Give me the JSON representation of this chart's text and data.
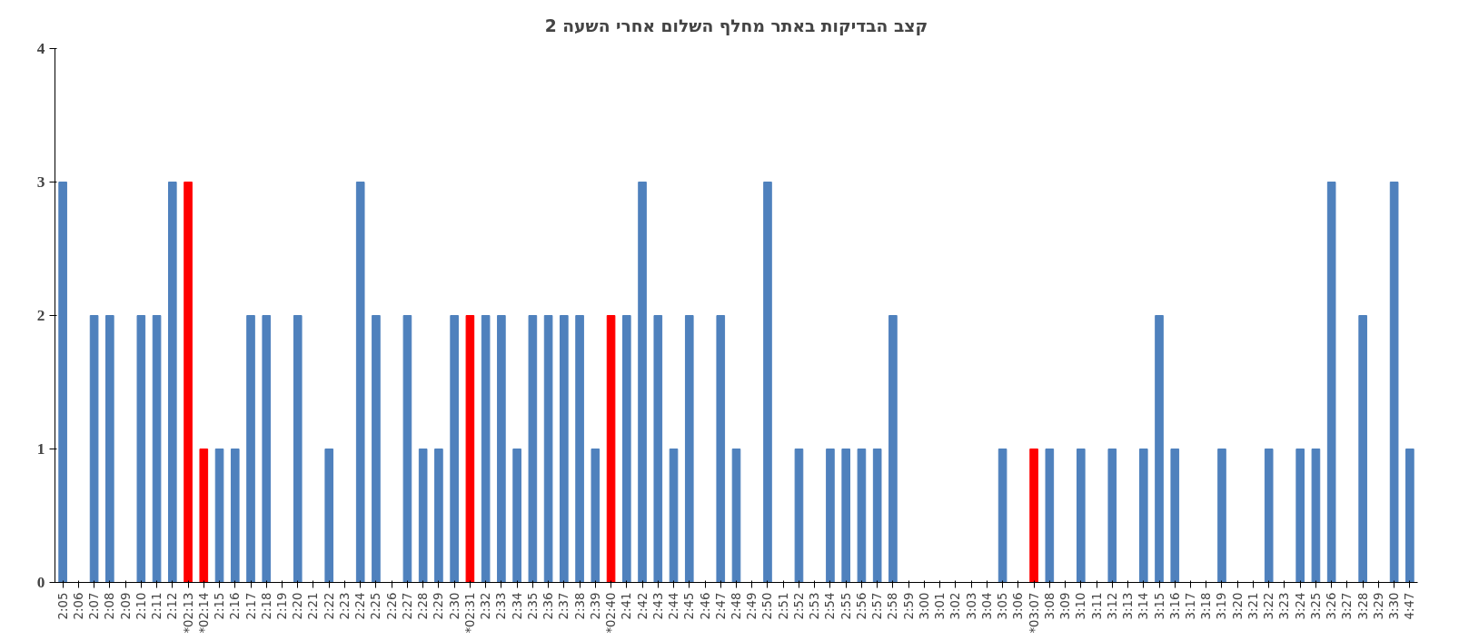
{
  "chart_data": {
    "type": "bar",
    "title": "קצב הבדיקות באתר מחלף השלום אחרי השעה 2",
    "categories": [
      "2:05",
      "2:06",
      "2:07",
      "2:08",
      "2:09",
      "2:10",
      "2:11",
      "2:12",
      "*02:13",
      "*02:14",
      "2:15",
      "2:16",
      "2:17",
      "2:18",
      "2:19",
      "2:20",
      "2:21",
      "2:22",
      "2:23",
      "2:24",
      "2:25",
      "2:26",
      "2:27",
      "2:28",
      "2:29",
      "2:30",
      "*02:31",
      "2:32",
      "2:33",
      "2:34",
      "2:35",
      "2:36",
      "2:37",
      "2:38",
      "2:39",
      "*02:40",
      "2:41",
      "2:42",
      "2:43",
      "2:44",
      "2:45",
      "2:46",
      "2:47",
      "2:48",
      "2:49",
      "2:50",
      "2:51",
      "2:52",
      "2:53",
      "2:54",
      "2:55",
      "2:56",
      "2:57",
      "2:58",
      "2:59",
      "3:00",
      "3:01",
      "3:02",
      "3:03",
      "3:04",
      "3:05",
      "3:06",
      "*03:07",
      "3:08",
      "3:09",
      "3:10",
      "3:11",
      "3:12",
      "3:13",
      "3:14",
      "3:15",
      "3:16",
      "3:17",
      "3:18",
      "3:19",
      "3:20",
      "3:21",
      "3:22",
      "3:23",
      "3:24",
      "3:25",
      "3:26",
      "3:27",
      "3:28",
      "3:29",
      "3:30",
      "4:47"
    ],
    "values": [
      3,
      0,
      2,
      2,
      0,
      2,
      2,
      3,
      3,
      1,
      1,
      1,
      2,
      2,
      0,
      2,
      0,
      1,
      0,
      3,
      2,
      0,
      2,
      1,
      1,
      2,
      2,
      2,
      2,
      1,
      2,
      2,
      2,
      2,
      1,
      2,
      2,
      3,
      2,
      1,
      2,
      0,
      2,
      1,
      0,
      3,
      0,
      1,
      0,
      1,
      1,
      1,
      1,
      2,
      0,
      0,
      0,
      0,
      0,
      0,
      1,
      0,
      1,
      1,
      0,
      1,
      0,
      1,
      0,
      1,
      2,
      1,
      0,
      0,
      1,
      0,
      0,
      1,
      0,
      1,
      1,
      3,
      0,
      2,
      0,
      3,
      1
    ],
    "colors": [
      "#4f81bd",
      "#4f81bd",
      "#4f81bd",
      "#4f81bd",
      "#4f81bd",
      "#4f81bd",
      "#4f81bd",
      "#4f81bd",
      "#ff0000",
      "#ff0000",
      "#4f81bd",
      "#4f81bd",
      "#4f81bd",
      "#4f81bd",
      "#4f81bd",
      "#4f81bd",
      "#4f81bd",
      "#4f81bd",
      "#4f81bd",
      "#4f81bd",
      "#4f81bd",
      "#4f81bd",
      "#4f81bd",
      "#4f81bd",
      "#4f81bd",
      "#4f81bd",
      "#ff0000",
      "#4f81bd",
      "#4f81bd",
      "#4f81bd",
      "#4f81bd",
      "#4f81bd",
      "#4f81bd",
      "#4f81bd",
      "#4f81bd",
      "#ff0000",
      "#4f81bd",
      "#4f81bd",
      "#4f81bd",
      "#4f81bd",
      "#4f81bd",
      "#4f81bd",
      "#4f81bd",
      "#4f81bd",
      "#4f81bd",
      "#4f81bd",
      "#4f81bd",
      "#4f81bd",
      "#4f81bd",
      "#4f81bd",
      "#4f81bd",
      "#4f81bd",
      "#4f81bd",
      "#4f81bd",
      "#4f81bd",
      "#4f81bd",
      "#4f81bd",
      "#4f81bd",
      "#4f81bd",
      "#4f81bd",
      "#4f81bd",
      "#4f81bd",
      "#ff0000",
      "#4f81bd",
      "#4f81bd",
      "#4f81bd",
      "#4f81bd",
      "#4f81bd",
      "#4f81bd",
      "#4f81bd",
      "#4f81bd",
      "#4f81bd",
      "#4f81bd",
      "#4f81bd",
      "#4f81bd",
      "#4f81bd",
      "#4f81bd",
      "#4f81bd",
      "#4f81bd",
      "#4f81bd",
      "#4f81bd",
      "#4f81bd",
      "#4f81bd",
      "#4f81bd",
      "#4f81bd",
      "#4f81bd",
      "#4f81bd"
    ],
    "ylim": [
      0,
      4
    ],
    "yticks": [
      0,
      1,
      2,
      3,
      4
    ],
    "grid": false
  }
}
